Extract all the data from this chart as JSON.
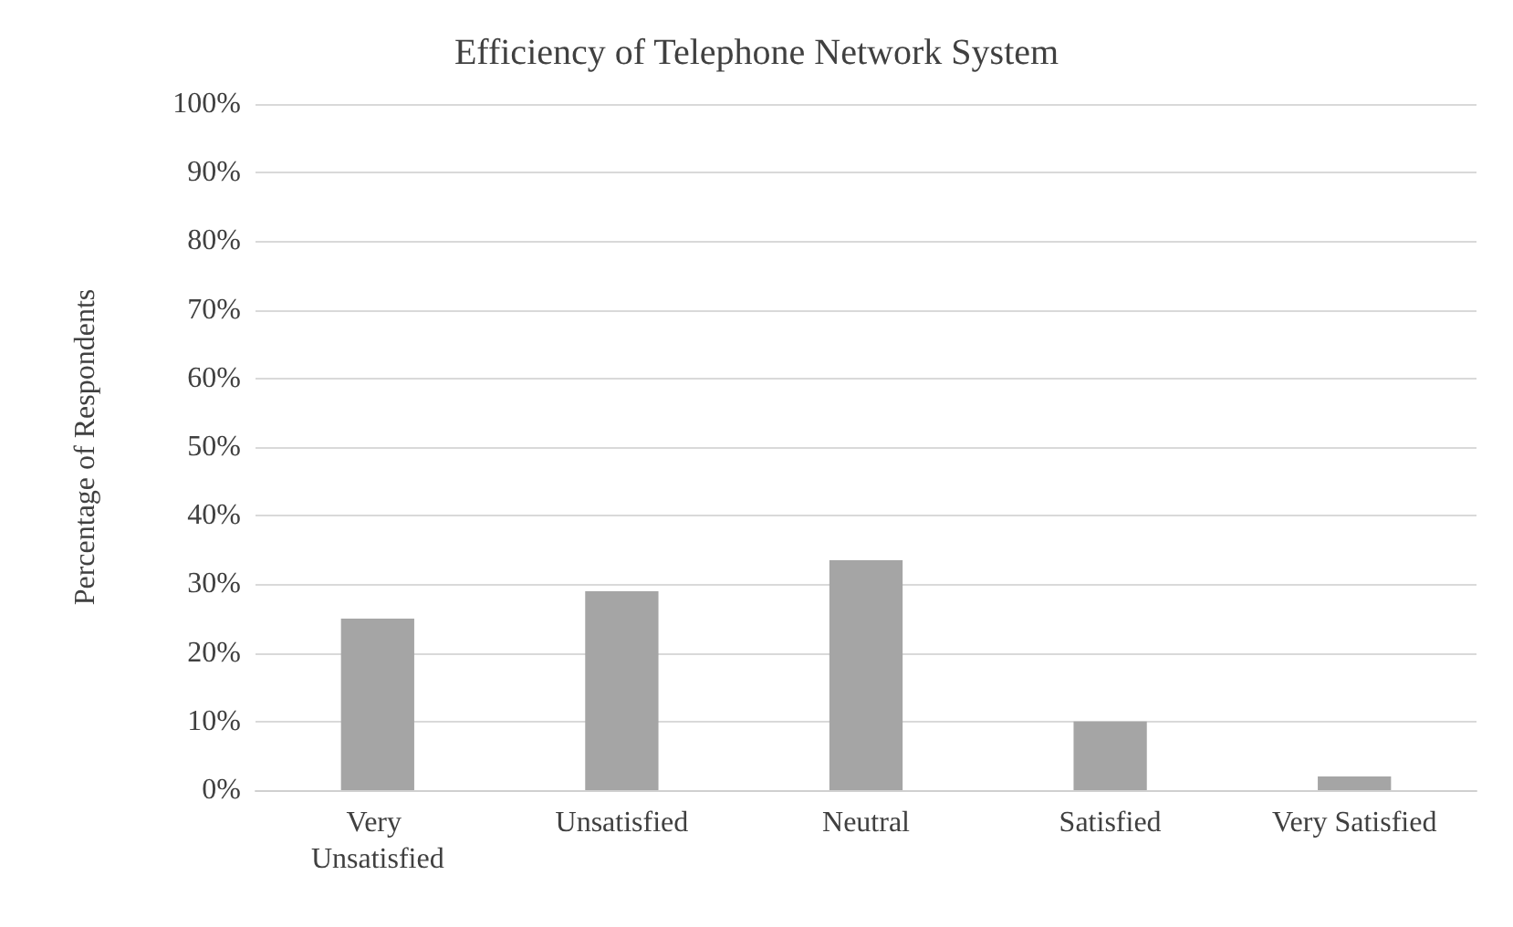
{
  "chart_data": {
    "type": "bar",
    "title": "Efficiency of Telephone Network System",
    "ylabel": "Percentage of Respondents",
    "categories": [
      "Very Unsatisfied",
      "Unsatisfied",
      "Neutral",
      "Satisfied",
      "Very Satisfied"
    ],
    "values": [
      25,
      29,
      33.5,
      10,
      2
    ],
    "color": "#a5a5a5",
    "ylim": [
      0,
      100
    ],
    "yticks": [
      {
        "value": 0,
        "label": "0%"
      },
      {
        "value": 10,
        "label": "10%"
      },
      {
        "value": 20,
        "label": "20%"
      },
      {
        "value": 30,
        "label": "30%"
      },
      {
        "value": 40,
        "label": "40%"
      },
      {
        "value": 50,
        "label": "50%"
      },
      {
        "value": 60,
        "label": "60%"
      },
      {
        "value": 70,
        "label": "70%"
      },
      {
        "value": 80,
        "label": "80%"
      },
      {
        "value": 90,
        "label": "90%"
      },
      {
        "value": 100,
        "label": "100%"
      }
    ],
    "grid": true
  }
}
